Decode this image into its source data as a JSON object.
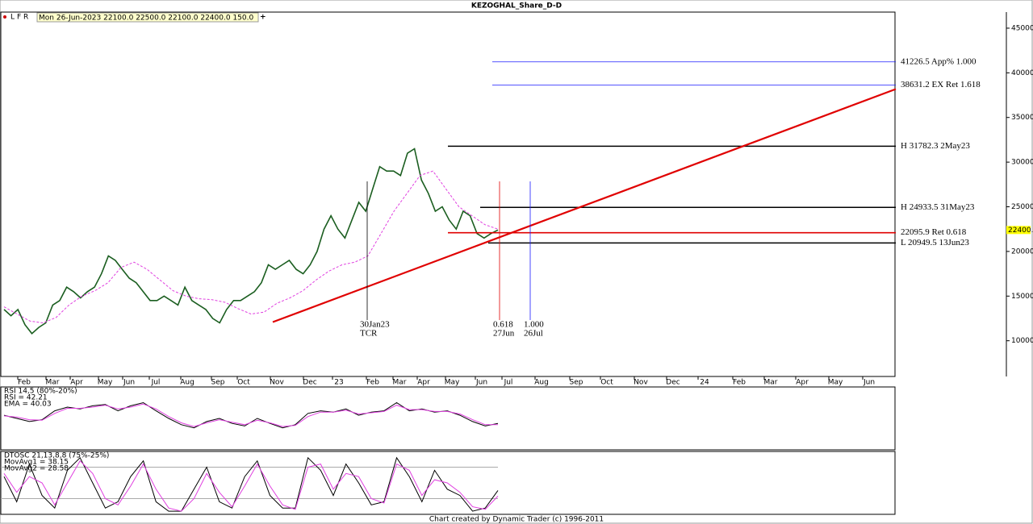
{
  "title": "KEZOGHAL_Share_D-D",
  "toolbar_buttons": [
    "L",
    "F",
    "R"
  ],
  "quote_bar": "Mon 26-Jun-2023   22100.0   22500.0   22100.0   22400.0   150.0",
  "footer": "Chart created by Dynamic Trader  (c) 1996-2011",
  "x_axis_labels": [
    "Feb",
    "Mar",
    "Apr",
    "May",
    "Jun",
    "Jul",
    "Aug",
    "Sep",
    "Oct",
    "Nov",
    "Dec",
    "23",
    "Feb",
    "Mar",
    "Apr",
    "May",
    "Jun",
    "Jul",
    "Aug",
    "Sep",
    "Oct",
    "Nov",
    "Dec",
    "24",
    "Feb",
    "Mar",
    "Apr",
    "May",
    "Jun"
  ],
  "chart_data": [
    {
      "type": "line",
      "ylim": [
        6000,
        46800
      ],
      "yticks": [
        {
          "value": 10000,
          "label": "10000.0"
        },
        {
          "value": 15000,
          "label": "15000.0"
        },
        {
          "value": 20000,
          "label": "20000.0"
        },
        {
          "value": 25000,
          "label": "25000.0"
        },
        {
          "value": 30000,
          "label": "30000.0"
        },
        {
          "value": 35000,
          "label": "35000.0"
        },
        {
          "value": 40000,
          "label": "40000.0"
        },
        {
          "value": 45000,
          "label": "45000.0"
        }
      ],
      "last_price": {
        "value": 22400,
        "label": "22400.0"
      },
      "series": [
        {
          "name": "Price",
          "color": "#1b5e20",
          "values": [
            13500,
            12800,
            13500,
            11800,
            10800,
            11500,
            12000,
            14000,
            14500,
            16000,
            15500,
            14800,
            15500,
            16000,
            17500,
            19500,
            19000,
            18000,
            17000,
            16500,
            15500,
            14500,
            14500,
            15000,
            14500,
            14000,
            16000,
            14500,
            14000,
            13500,
            12500,
            12000,
            13500,
            14500,
            14500,
            15000,
            15500,
            16500,
            18500,
            18000,
            18500,
            19000,
            18000,
            17500,
            18500,
            20000,
            22500,
            24000,
            22500,
            21500,
            23500,
            25500,
            24500,
            27000,
            29500,
            29000,
            29000,
            28500,
            31000,
            31500,
            28000,
            26500,
            24500,
            25000,
            23500,
            22500,
            24500,
            24000,
            22000,
            21500,
            22000,
            22400
          ]
        },
        {
          "name": "MA",
          "color": "#e040e0",
          "values": [
            13800,
            13000,
            12200,
            12000,
            12600,
            14000,
            15000,
            15600,
            16500,
            18200,
            18800,
            18000,
            16800,
            15600,
            15000,
            14700,
            14600,
            14300,
            13600,
            13000,
            13200,
            14200,
            14800,
            15600,
            16800,
            17800,
            18500,
            18800,
            19500,
            22000,
            24500,
            26500,
            28500,
            29000,
            27000,
            25000,
            24000,
            23000,
            22500
          ]
        }
      ],
      "levels": [
        {
          "value": 41226.5,
          "label": "41226.5 App% 1.000",
          "color": "#1a1aff"
        },
        {
          "value": 38631.2,
          "label": "38631.2 EX Ret 1.618",
          "color": "#1a1aff"
        },
        {
          "value": 31782.3,
          "label": "H 31782.3 2May23",
          "color": "#000000"
        },
        {
          "value": 24933.5,
          "label": "H 24933.5 31May23",
          "color": "#000000"
        },
        {
          "value": 22095.9,
          "label": "22095.9 Ret 0.618",
          "color": "#e00000"
        },
        {
          "value": 20949.5,
          "label": "L 20949.5 13Jun23",
          "color": "#000000"
        }
      ],
      "trendline": {
        "color": "#e00000",
        "values": [
          12091,
          38182
        ]
      },
      "markers": [
        {
          "color": "#000000",
          "labels": [
            "30Jan23",
            "TCR"
          ]
        },
        {
          "color": "#e00000",
          "labels": [
            "0.618",
            "27Jun"
          ]
        },
        {
          "color": "#1a1aff",
          "labels": [
            "1.000",
            "26Jul"
          ]
        }
      ]
    },
    {
      "type": "line",
      "title": "RSI 14,5 (80%-20%)",
      "ylim": [
        0,
        100
      ],
      "series": [
        {
          "name": "RSI = 42.21",
          "color": "#000000",
          "values": [
            55,
            50,
            45,
            48,
            62,
            68,
            65,
            70,
            72,
            62,
            70,
            75,
            62,
            50,
            40,
            35,
            45,
            50,
            42,
            38,
            50,
            42,
            35,
            40,
            58,
            62,
            60,
            65,
            55,
            60,
            62,
            75,
            62,
            65,
            60,
            62,
            55,
            45,
            38,
            42
          ]
        },
        {
          "name": "EMA = 40.03",
          "color": "#e040e0",
          "values": [
            54,
            52,
            48,
            47,
            58,
            66,
            66,
            68,
            71,
            65,
            68,
            73,
            65,
            53,
            43,
            37,
            43,
            48,
            44,
            40,
            47,
            43,
            37,
            39,
            53,
            60,
            60,
            63,
            57,
            59,
            61,
            71,
            64,
            64,
            61,
            61,
            57,
            48,
            40,
            40
          ]
        }
      ]
    },
    {
      "type": "line",
      "title": "DTOSC 21,13,8,8 (75%-25%)",
      "ylim": [
        0,
        100
      ],
      "guides": [
        75,
        25
      ],
      "series": [
        {
          "name": "MovAvg1 = 38.15",
          "color": "#000000",
          "values": [
            60,
            20,
            80,
            30,
            10,
            70,
            90,
            50,
            10,
            20,
            60,
            85,
            20,
            5,
            5,
            40,
            75,
            20,
            10,
            60,
            85,
            30,
            10,
            10,
            90,
            70,
            30,
            80,
            50,
            15,
            20,
            90,
            60,
            20,
            70,
            40,
            30,
            5,
            10,
            38
          ]
        },
        {
          "name": "MovAvg2 = 28.58",
          "color": "#e040e0",
          "values": [
            65,
            35,
            60,
            50,
            15,
            50,
            85,
            65,
            25,
            15,
            45,
            80,
            40,
            10,
            5,
            25,
            65,
            35,
            12,
            45,
            80,
            45,
            15,
            8,
            75,
            80,
            40,
            65,
            60,
            25,
            18,
            80,
            70,
            30,
            55,
            50,
            35,
            12,
            8,
            29
          ]
        }
      ]
    }
  ]
}
